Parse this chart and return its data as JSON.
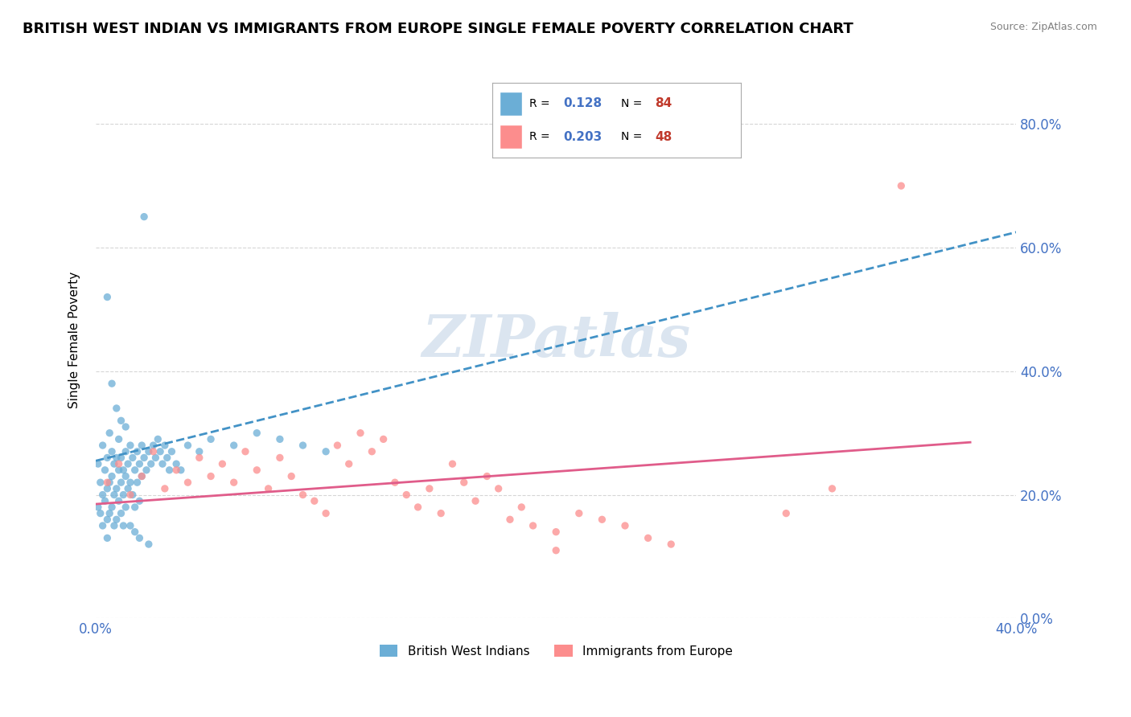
{
  "title": "BRITISH WEST INDIAN VS IMMIGRANTS FROM EUROPE SINGLE FEMALE POVERTY CORRELATION CHART",
  "source_text": "Source: ZipAtlas.com",
  "ylabel": "Single Female Poverty",
  "xlim": [
    0.0,
    0.4
  ],
  "ylim": [
    0.0,
    0.9
  ],
  "r_blue": 0.128,
  "n_blue": 84,
  "r_pink": 0.203,
  "n_pink": 48,
  "blue_color": "#6baed6",
  "pink_color": "#fc8d8d",
  "trend_blue_color": "#4292c6",
  "trend_pink_color": "#e05c8a",
  "watermark": "ZIPatlas",
  "watermark_color": "#c8d8e8",
  "legend_label_blue": "British West Indians",
  "legend_label_pink": "Immigrants from Europe",
  "blue_x": [
    0.001,
    0.001,
    0.002,
    0.002,
    0.003,
    0.003,
    0.003,
    0.004,
    0.004,
    0.005,
    0.005,
    0.005,
    0.005,
    0.006,
    0.006,
    0.006,
    0.007,
    0.007,
    0.007,
    0.008,
    0.008,
    0.008,
    0.009,
    0.009,
    0.009,
    0.01,
    0.01,
    0.01,
    0.011,
    0.011,
    0.011,
    0.012,
    0.012,
    0.012,
    0.013,
    0.013,
    0.013,
    0.014,
    0.014,
    0.015,
    0.015,
    0.016,
    0.016,
    0.017,
    0.017,
    0.018,
    0.018,
    0.019,
    0.019,
    0.02,
    0.02,
    0.021,
    0.022,
    0.023,
    0.024,
    0.025,
    0.026,
    0.027,
    0.028,
    0.029,
    0.03,
    0.031,
    0.032,
    0.033,
    0.035,
    0.037,
    0.04,
    0.045,
    0.05,
    0.06,
    0.07,
    0.08,
    0.09,
    0.1,
    0.005,
    0.007,
    0.009,
    0.011,
    0.013,
    0.015,
    0.017,
    0.019,
    0.021,
    0.023
  ],
  "blue_y": [
    0.25,
    0.18,
    0.22,
    0.17,
    0.28,
    0.2,
    0.15,
    0.24,
    0.19,
    0.26,
    0.21,
    0.16,
    0.13,
    0.3,
    0.22,
    0.17,
    0.23,
    0.27,
    0.18,
    0.25,
    0.2,
    0.15,
    0.26,
    0.21,
    0.16,
    0.29,
    0.24,
    0.19,
    0.26,
    0.22,
    0.17,
    0.24,
    0.2,
    0.15,
    0.27,
    0.23,
    0.18,
    0.25,
    0.21,
    0.28,
    0.22,
    0.26,
    0.2,
    0.24,
    0.18,
    0.27,
    0.22,
    0.25,
    0.19,
    0.28,
    0.23,
    0.26,
    0.24,
    0.27,
    0.25,
    0.28,
    0.26,
    0.29,
    0.27,
    0.25,
    0.28,
    0.26,
    0.24,
    0.27,
    0.25,
    0.24,
    0.28,
    0.27,
    0.29,
    0.28,
    0.3,
    0.29,
    0.28,
    0.27,
    0.52,
    0.38,
    0.34,
    0.32,
    0.31,
    0.15,
    0.14,
    0.13,
    0.65,
    0.12
  ],
  "pink_x": [
    0.005,
    0.01,
    0.015,
    0.02,
    0.025,
    0.03,
    0.035,
    0.04,
    0.045,
    0.05,
    0.055,
    0.06,
    0.065,
    0.07,
    0.075,
    0.08,
    0.085,
    0.09,
    0.095,
    0.1,
    0.105,
    0.11,
    0.115,
    0.12,
    0.125,
    0.13,
    0.135,
    0.14,
    0.145,
    0.15,
    0.155,
    0.16,
    0.165,
    0.17,
    0.175,
    0.18,
    0.185,
    0.19,
    0.2,
    0.21,
    0.22,
    0.23,
    0.24,
    0.25,
    0.3,
    0.32,
    0.35,
    0.2
  ],
  "pink_y": [
    0.22,
    0.25,
    0.2,
    0.23,
    0.27,
    0.21,
    0.24,
    0.22,
    0.26,
    0.23,
    0.25,
    0.22,
    0.27,
    0.24,
    0.21,
    0.26,
    0.23,
    0.2,
    0.19,
    0.17,
    0.28,
    0.25,
    0.3,
    0.27,
    0.29,
    0.22,
    0.2,
    0.18,
    0.21,
    0.17,
    0.25,
    0.22,
    0.19,
    0.23,
    0.21,
    0.16,
    0.18,
    0.15,
    0.14,
    0.17,
    0.16,
    0.15,
    0.13,
    0.12,
    0.17,
    0.21,
    0.7,
    0.11
  ],
  "blue_trend_x0": 0.0,
  "blue_trend_x1": 0.4,
  "blue_trend_y0": 0.255,
  "blue_trend_y1": 0.625,
  "pink_trend_x0": 0.0,
  "pink_trend_x1": 0.38,
  "pink_trend_y0": 0.185,
  "pink_trend_y1": 0.285
}
